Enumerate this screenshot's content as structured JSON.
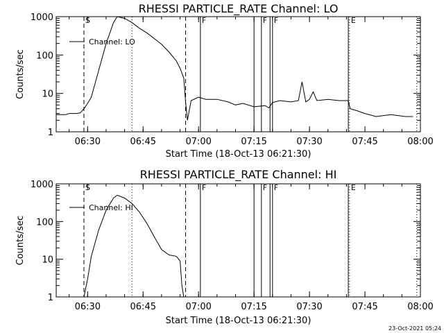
{
  "footer_timestamp": "23-Oct-2021 05:24",
  "chart_data": [
    {
      "type": "line",
      "title": "RHESSI PARTICLE_RATE Channel: LO",
      "xlabel": "Start Time (18-Oct-13 06:21:30)",
      "ylabel": "Counts/sec",
      "yscale": "log",
      "ylim": [
        1,
        1000
      ],
      "xlim_minutes": [
        "06:21:30",
        "08:00:00"
      ],
      "x_ticks": [
        "06:30",
        "06:45",
        "07:00",
        "07:15",
        "07:30",
        "07:45",
        "08:00"
      ],
      "y_ticks": [
        "1",
        "10",
        "100",
        "1000"
      ],
      "legend": "Channel: LO",
      "markers": [
        {
          "time": "06:29:00",
          "style": "dashed",
          "label": "S"
        },
        {
          "time": "06:42:00",
          "style": "dotted",
          "label": ""
        },
        {
          "time": "06:56:30",
          "style": "dashed",
          "label": ""
        },
        {
          "time": "07:00:30",
          "style": "solid",
          "label": "F"
        },
        {
          "time": "07:15:00",
          "style": "solid",
          "label": ""
        },
        {
          "time": "07:17:00",
          "style": "solid",
          "label": "F"
        },
        {
          "time": "07:19:20",
          "style": "solid",
          "label": ""
        },
        {
          "time": "07:20:00",
          "style": "solid",
          "label": "F"
        },
        {
          "time": "07:40:30",
          "style": "solid",
          "label": ""
        },
        {
          "time": "07:40:50",
          "style": "dotted",
          "label": "E"
        },
        {
          "time": "07:59:00",
          "style": "dotted",
          "label": ""
        }
      ],
      "series": [
        {
          "name": "Channel: LO",
          "x": [
            "06:21:30",
            "06:24:00",
            "06:25:00",
            "06:26:00",
            "06:27:00",
            "06:28:00",
            "06:29:00",
            "06:30:00",
            "06:31:00",
            "06:33:00",
            "06:35:00",
            "06:37:00",
            "06:38:00",
            "06:40:00",
            "06:42:00",
            "06:44:00",
            "06:46:00",
            "06:48:00",
            "06:50:00",
            "06:52:00",
            "06:54:00",
            "06:55:00",
            "06:56:00",
            "06:56:30",
            "06:57:00",
            "06:58:00",
            "07:00:00",
            "07:02:00",
            "07:05:00",
            "07:08:00",
            "07:10:00",
            "07:12:00",
            "07:15:00",
            "07:18:00",
            "07:19:00",
            "07:20:00",
            "07:22:00",
            "07:25:00",
            "07:27:00",
            "07:28:00",
            "07:29:00",
            "07:30:00",
            "07:31:00",
            "07:32:00",
            "07:35:00",
            "07:38:00",
            "07:40:30",
            "07:41:00",
            "07:43:00",
            "07:45:00",
            "07:48:00",
            "07:52:00",
            "07:56:00",
            "07:58:00"
          ],
          "y": [
            2.8,
            2.8,
            3.0,
            3.0,
            3.0,
            3.1,
            4.0,
            5.5,
            8,
            40,
            200,
            700,
            1000,
            900,
            700,
            500,
            380,
            270,
            190,
            120,
            70,
            45,
            25,
            6,
            2,
            6.5,
            8,
            7,
            7,
            6,
            5,
            5.5,
            4.5,
            4.8,
            4.2,
            5.8,
            6.5,
            6,
            6.5,
            20,
            6,
            7,
            11,
            6.5,
            7,
            6.5,
            6.5,
            4,
            3.5,
            3,
            2.5,
            2.8,
            2.5,
            2.5
          ]
        }
      ]
    },
    {
      "type": "line",
      "title": "RHESSI PARTICLE_RATE Channel: HI",
      "xlabel": "Start Time (18-Oct-13 06:21:30)",
      "ylabel": "Counts/sec",
      "yscale": "log",
      "ylim": [
        1,
        1000
      ],
      "xlim_minutes": [
        "06:21:30",
        "08:00:00"
      ],
      "x_ticks": [
        "06:30",
        "06:45",
        "07:00",
        "07:15",
        "07:30",
        "07:45",
        "08:00"
      ],
      "y_ticks": [
        "1",
        "10",
        "100",
        "1000"
      ],
      "legend": "Channel: HI",
      "markers": [
        {
          "time": "06:29:00",
          "style": "dashed",
          "label": "S"
        },
        {
          "time": "06:42:00",
          "style": "dotted",
          "label": ""
        },
        {
          "time": "06:56:30",
          "style": "dashed",
          "label": ""
        },
        {
          "time": "07:00:30",
          "style": "solid",
          "label": "F"
        },
        {
          "time": "07:15:00",
          "style": "solid",
          "label": ""
        },
        {
          "time": "07:17:00",
          "style": "solid",
          "label": "F"
        },
        {
          "time": "07:19:20",
          "style": "solid",
          "label": ""
        },
        {
          "time": "07:20:00",
          "style": "solid",
          "label": "F"
        },
        {
          "time": "07:40:30",
          "style": "solid",
          "label": ""
        },
        {
          "time": "07:40:50",
          "style": "dotted",
          "label": "E"
        },
        {
          "time": "07:59:00",
          "style": "dotted",
          "label": ""
        }
      ],
      "series": [
        {
          "name": "Channel: HI",
          "x": [
            "06:29:00",
            "06:30:00",
            "06:31:00",
            "06:33:00",
            "06:35:00",
            "06:37:00",
            "06:38:00",
            "06:40:00",
            "06:42:00",
            "06:44:00",
            "06:46:00",
            "06:48:00",
            "06:50:00",
            "06:52:00",
            "06:54:00",
            "06:55:00",
            "06:55:30",
            "06:56:00"
          ],
          "y": [
            1,
            3,
            12,
            60,
            200,
            420,
            500,
            420,
            300,
            180,
            90,
            40,
            18,
            13,
            12,
            9,
            2,
            1
          ]
        }
      ]
    }
  ]
}
